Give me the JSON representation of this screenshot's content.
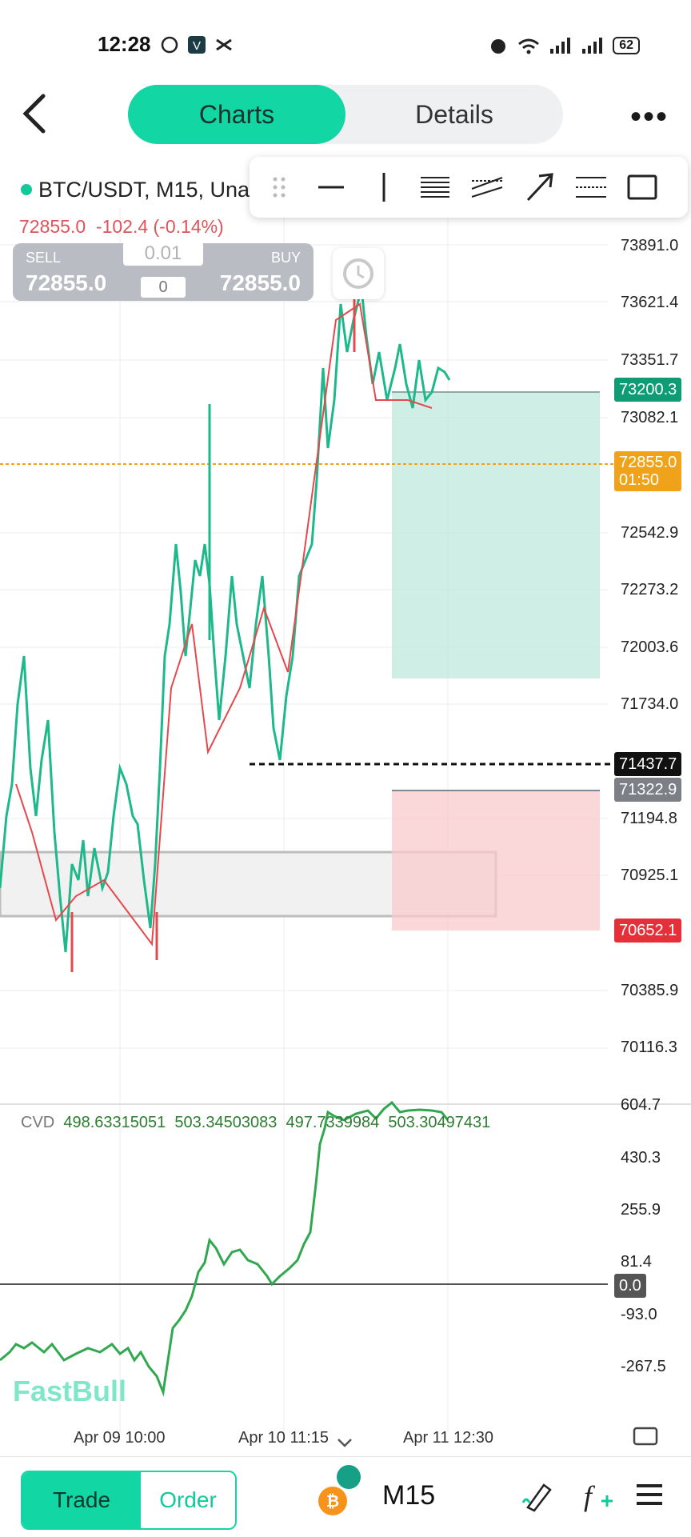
{
  "status_bar": {
    "time": "12:28",
    "battery": "62"
  },
  "header": {
    "tab_charts": "Charts",
    "tab_details": "Details",
    "more": "•••"
  },
  "symbol": {
    "title": "BTC/USDT, M15, Una",
    "last": "72855.0",
    "change": "-102.4 (-0.14%)"
  },
  "trade_widget": {
    "sell_label": "SELL",
    "buy_label": "BUY",
    "sell_price": "72855.0",
    "buy_price": "72855.0",
    "lot": "0.01",
    "count": "0"
  },
  "price_axis": {
    "ticks": [
      "73891.0",
      "73621.4",
      "73351.7",
      "73082.1",
      "72542.9",
      "72273.2",
      "72003.6",
      "71734.0",
      "71194.8",
      "70925.1",
      "70385.9",
      "70116.3"
    ],
    "tp_label": "73200.3",
    "current_label": "72855.0",
    "countdown": "01:50",
    "line_label": "71437.7",
    "entry_label": "71322.9",
    "sl_label": "70652.1"
  },
  "cvd": {
    "label": "CVD",
    "values": [
      "498.63315051",
      "503.34503083",
      "497.7339984",
      "503.30497431"
    ],
    "ticks": [
      "604.7",
      "430.3",
      "255.9",
      "81.4",
      "-93.0",
      "-267.5"
    ],
    "zero_label": "0.0"
  },
  "time_axis": [
    "Apr 09 10:00",
    "Apr 10 11:15",
    "Apr 11 12:30"
  ],
  "watermark": "FastBull",
  "bottom_nav": {
    "trade": "Trade",
    "order": "Order",
    "timeframe": "M15"
  },
  "colors": {
    "accent": "#12d6a3",
    "up": "#12b886",
    "down": "#e5484d",
    "tp": "#0f9b74",
    "current": "#f0a21a",
    "sl": "#e5303a"
  }
}
